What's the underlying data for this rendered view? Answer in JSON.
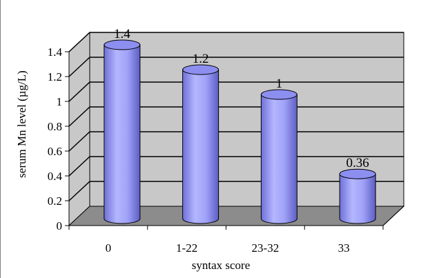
{
  "chart_data": {
    "type": "bar",
    "style": "3d-cylinder",
    "categories": [
      "0",
      "1-22",
      "23-32",
      "33"
    ],
    "values": [
      1.4,
      1.2,
      1,
      0.36
    ],
    "data_labels": [
      "1.4",
      "1.2",
      "1",
      "0.36"
    ],
    "xlabel": "syntax score",
    "ylabel": "serum Mn level (µg/L)",
    "ylim": [
      0,
      1.4
    ],
    "yticks": [
      "0",
      "0.2",
      "0.4",
      "0.6",
      "0.8",
      "1",
      "1.2",
      "1.4"
    ],
    "grid": true,
    "legend": "none",
    "colors": {
      "cylinder_body": "#9a9cf4",
      "cylinder_top": "#8c8ef0",
      "back_wall": "#c8c8c8",
      "floor": "#8c8c8c",
      "grid": "#000000"
    }
  }
}
